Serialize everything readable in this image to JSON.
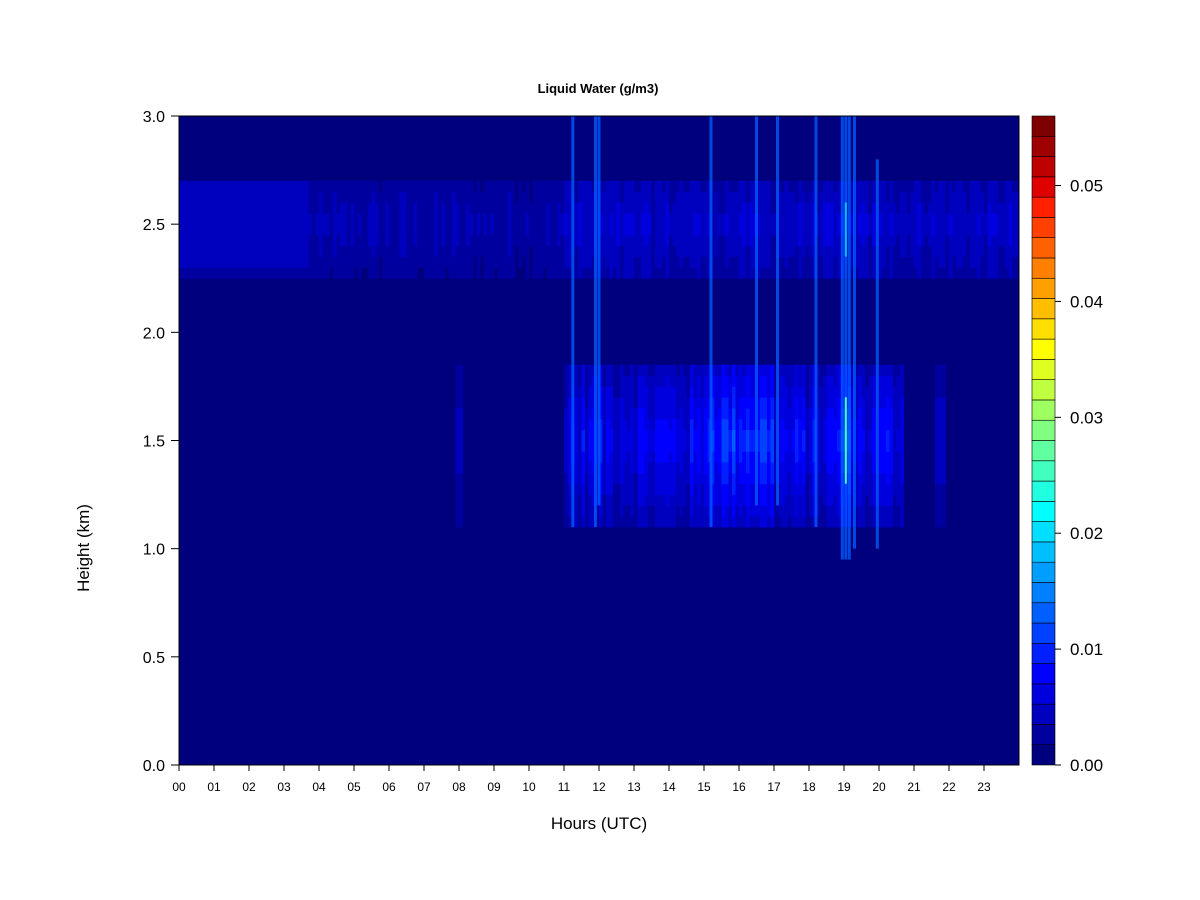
{
  "chart_data": {
    "type": "heatmap",
    "title": "Liquid Water (g/m3)",
    "xlabel": "Hours (UTC)",
    "ylabel": "Height (km)",
    "x_ticks": [
      "00",
      "01",
      "02",
      "03",
      "04",
      "05",
      "06",
      "07",
      "08",
      "09",
      "10",
      "11",
      "12",
      "13",
      "14",
      "15",
      "16",
      "17",
      "18",
      "19",
      "20",
      "21",
      "22",
      "23"
    ],
    "xlim": [
      0,
      24
    ],
    "y_ticks": [
      "0.0",
      "0.5",
      "1.0",
      "1.5",
      "2.0",
      "2.5",
      "3.0"
    ],
    "ylim": [
      0,
      3
    ],
    "colorbar": {
      "ticks": [
        "0.00",
        "0.01",
        "0.02",
        "0.03",
        "0.04",
        "0.05"
      ],
      "range": [
        0,
        0.056
      ],
      "levels": 28,
      "colors": [
        "#00007F",
        "#00009F",
        "#0000BF",
        "#0000DF",
        "#0000FF",
        "#0020FF",
        "#0040FF",
        "#0060FF",
        "#0080FF",
        "#009FFF",
        "#00BFFF",
        "#00DFFF",
        "#00FFFF",
        "#20FFDF",
        "#40FFBF",
        "#60FF9F",
        "#80FF80",
        "#9FFF60",
        "#BFFF40",
        "#DFFF20",
        "#FFFF00",
        "#FFDF00",
        "#FFBF00",
        "#FF9F00",
        "#FF8000",
        "#FF6000",
        "#FF4000",
        "#FF2000",
        "#DF0000",
        "#BF0000",
        "#9F0000",
        "#7F0000"
      ]
    },
    "cloud_layers": [
      {
        "name": "upper",
        "height_km": [
          2.25,
          2.72
        ],
        "peak_km": 2.5,
        "hours": [
          0,
          24
        ],
        "peak_value": 0.006
      },
      {
        "name": "lower",
        "height_km": [
          1.1,
          1.85
        ],
        "peak_km": 1.5,
        "hours": [
          11,
          20.7
        ],
        "peak_value": 0.012
      }
    ]
  }
}
